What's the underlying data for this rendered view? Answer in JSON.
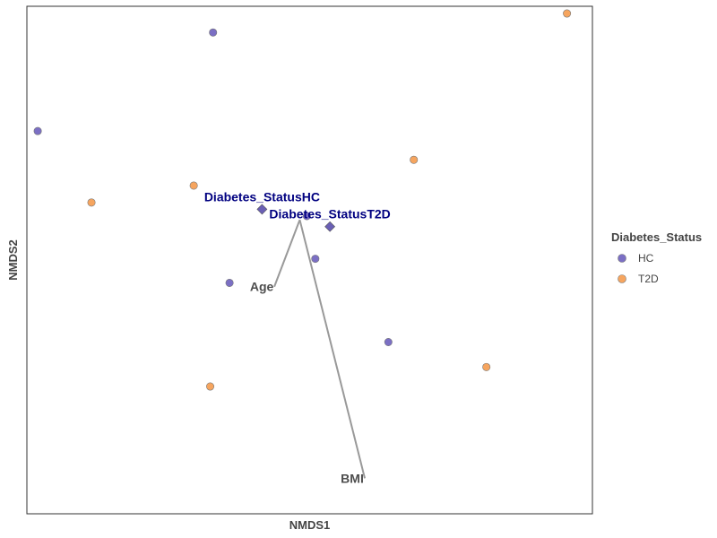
{
  "chart_data": {
    "type": "scatter",
    "xlabel": "NMDS1",
    "ylabel": "NMDS2",
    "xlim": [
      -0.6,
      0.6
    ],
    "ylim": [
      -0.6,
      0.6
    ],
    "legend": {
      "title": "Diabetes_Status",
      "placement": "right",
      "entries": [
        {
          "name": "HC",
          "color": "#7b6fc4"
        },
        {
          "name": "T2D",
          "color": "#f6a55f"
        }
      ]
    },
    "series": [
      {
        "name": "HC",
        "color": "#7b6fc4",
        "shape": "circle",
        "x": [
          -0.577,
          -0.205,
          -0.17,
          -0.006,
          0.012,
          0.167
        ],
        "y": [
          0.305,
          0.538,
          -0.054,
          0.104,
          0.003,
          -0.194
        ]
      },
      {
        "name": "T2D",
        "color": "#f6a55f",
        "shape": "circle",
        "x": [
          -0.463,
          -0.246,
          -0.211,
          0.221,
          0.375,
          0.546
        ],
        "y": [
          0.136,
          0.176,
          -0.299,
          0.237,
          -0.253,
          0.583
        ]
      }
    ],
    "centroids": [
      {
        "label": "Diabetes_StatusHC",
        "x": -0.101,
        "y": 0.12,
        "color": "#6a5fb5"
      },
      {
        "label": "Diabetes_StatusT2D",
        "x": 0.043,
        "y": 0.079,
        "color": "#6a5fb5"
      }
    ],
    "vectors": {
      "origin": [
        -0.021,
        0.095
      ],
      "arrows": [
        {
          "label": "Age",
          "x": -0.075,
          "y": -0.063
        },
        {
          "label": "BMI",
          "x": 0.117,
          "y": -0.516
        }
      ]
    },
    "grid": false
  }
}
